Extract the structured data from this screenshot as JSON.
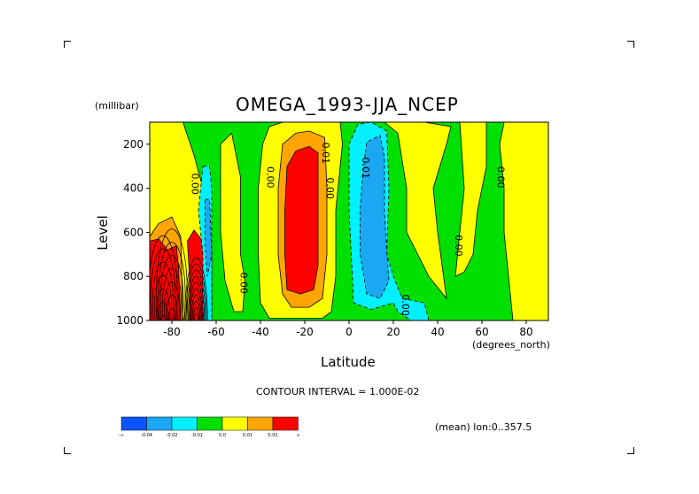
{
  "chart_data": {
    "type": "heatmap",
    "title": "OMEGA_1993-JJA_NCEP",
    "xlabel": "Latitude",
    "xunit": "(degrees_north)",
    "ylabel": "Level",
    "yunit": "(millibar)",
    "xlim": [
      -90,
      90
    ],
    "ylim": [
      1000,
      100
    ],
    "x_ticks": [
      "-80",
      "-60",
      "-40",
      "-20",
      "0",
      "20",
      "40",
      "60",
      "80"
    ],
    "x_tick_values": [
      -80,
      -60,
      -40,
      -20,
      0,
      20,
      40,
      60,
      80
    ],
    "y_ticks": [
      "200",
      "400",
      "600",
      "800",
      "1000"
    ],
    "y_tick_values": [
      200,
      400,
      600,
      800,
      1000
    ],
    "contour_interval_text": "CONTOUR INTERVAL = 1.000E-02",
    "annotation": "(mean) lon:0..357.5",
    "contour_labels": [
      {
        "text": "0.00",
        "lat": -71,
        "lev": 380
      },
      {
        "text": "0.00",
        "lat": -49,
        "lev": 830
      },
      {
        "text": "0.00",
        "lat": -37,
        "lev": 350
      },
      {
        "text": "0.01",
        "lat": -12,
        "lev": 240
      },
      {
        "text": "0.00",
        "lat": -10,
        "lev": 400
      },
      {
        "text": "-0.01",
        "lat": 6,
        "lev": 300
      },
      {
        "text": "0.00",
        "lat": 24,
        "lev": 930
      },
      {
        "text": "0.00",
        "lat": 48,
        "lev": 660
      },
      {
        "text": "0.00",
        "lat": 67,
        "lev": 350
      }
    ],
    "regions": [
      {
        "level": "0.0",
        "lon_lat": "green base",
        "pts": [
          [
            -90,
            100
          ],
          [
            90,
            100
          ],
          [
            90,
            1000
          ],
          [
            -90,
            1000
          ]
        ]
      },
      {
        "level": "0.0",
        "pts": [
          [
            -90,
            100
          ],
          [
            -75,
            100
          ],
          [
            -70,
            250
          ],
          [
            -66,
            400
          ],
          [
            -62,
            700
          ],
          [
            -62,
            1000
          ],
          [
            -90,
            1000
          ]
        ]
      },
      {
        "level": "0.0",
        "pts": [
          [
            -58,
            200
          ],
          [
            -53,
            150
          ],
          [
            -49,
            350
          ],
          [
            -49,
            700
          ],
          [
            -47,
            820
          ],
          [
            -48,
            960
          ],
          [
            -52,
            960
          ],
          [
            -56,
            820
          ],
          [
            -58,
            600
          ],
          [
            -58,
            400
          ]
        ]
      },
      {
        "level": "0.0",
        "pts": [
          [
            -39,
            200
          ],
          [
            -36,
            120
          ],
          [
            -30,
            100
          ],
          [
            -4,
            100
          ],
          [
            -3,
            200
          ],
          [
            -6,
            500
          ],
          [
            -6,
            800
          ],
          [
            -8,
            960
          ],
          [
            -12,
            990
          ],
          [
            -36,
            990
          ],
          [
            -40,
            920
          ],
          [
            -41,
            700
          ],
          [
            -41,
            400
          ]
        ]
      },
      {
        "level": "0.0",
        "pts": [
          [
            16,
            100
          ],
          [
            22,
            150
          ],
          [
            26,
            400
          ],
          [
            26,
            600
          ],
          [
            36,
            800
          ],
          [
            44,
            900
          ],
          [
            40,
            600
          ],
          [
            38,
            400
          ],
          [
            44,
            200
          ],
          [
            46,
            120
          ],
          [
            34,
            100
          ]
        ]
      },
      {
        "level": "0.0",
        "pts": [
          [
            50,
            100
          ],
          [
            62,
            100
          ],
          [
            62,
            300
          ],
          [
            58,
            500
          ],
          [
            56,
            700
          ],
          [
            52,
            780
          ],
          [
            48,
            800
          ],
          [
            50,
            600
          ],
          [
            52,
            400
          ]
        ]
      },
      {
        "level": "0.0",
        "pts": [
          [
            70,
            100
          ],
          [
            90,
            100
          ],
          [
            90,
            1000
          ],
          [
            74,
            1000
          ],
          [
            72,
            800
          ],
          [
            70,
            600
          ],
          [
            70,
            400
          ],
          [
            68,
            200
          ]
        ]
      },
      {
        "level": "0.01",
        "pts": [
          [
            -90,
            620
          ],
          [
            -86,
            560
          ],
          [
            -80,
            530
          ],
          [
            -76,
            620
          ],
          [
            -75,
            1000
          ],
          [
            -90,
            1000
          ]
        ]
      },
      {
        "level": "0.01",
        "pts": [
          [
            -30,
            200
          ],
          [
            -24,
            150
          ],
          [
            -18,
            140
          ],
          [
            -11,
            170
          ],
          [
            -10,
            400
          ],
          [
            -10,
            700
          ],
          [
            -12,
            900
          ],
          [
            -18,
            940
          ],
          [
            -26,
            940
          ],
          [
            -30,
            880
          ],
          [
            -32,
            700
          ],
          [
            -32,
            400
          ]
        ]
      },
      {
        "level": "0.02",
        "pts": [
          [
            -28,
            300
          ],
          [
            -24,
            230
          ],
          [
            -18,
            210
          ],
          [
            -14,
            240
          ],
          [
            -14,
            500
          ],
          [
            -14,
            750
          ],
          [
            -16,
            860
          ],
          [
            -22,
            880
          ],
          [
            -28,
            860
          ],
          [
            -29,
            700
          ],
          [
            -29,
            500
          ]
        ]
      },
      {
        "level": "0.02",
        "pts": [
          [
            -90,
            640
          ],
          [
            -86,
            630
          ],
          [
            -82,
            680
          ],
          [
            -78,
            660
          ],
          [
            -77,
            760
          ],
          [
            -76,
            1000
          ],
          [
            -90,
            1000
          ]
        ]
      },
      {
        "level": "0.02",
        "pts": [
          [
            -73,
            640
          ],
          [
            -70,
            590
          ],
          [
            -66,
            640
          ],
          [
            -64,
            700
          ],
          [
            -64,
            1000
          ],
          [
            -72,
            1000
          ],
          [
            -72,
            800
          ]
        ]
      },
      {
        "level": "-0.01",
        "pts": [
          [
            -66,
            300
          ],
          [
            -63,
            300
          ],
          [
            -62,
            400
          ],
          [
            -62,
            1000
          ],
          [
            -66,
            1000
          ],
          [
            -66,
            700
          ],
          [
            -68,
            500
          ]
        ]
      },
      {
        "level": "-0.01",
        "pts": [
          [
            0,
            200
          ],
          [
            4,
            110
          ],
          [
            10,
            100
          ],
          [
            17,
            140
          ],
          [
            18,
            400
          ],
          [
            17,
            700
          ],
          [
            20,
            800
          ],
          [
            24,
            900
          ],
          [
            34,
            920
          ],
          [
            36,
            1000
          ],
          [
            28,
            1000
          ],
          [
            22,
            960
          ],
          [
            20,
            920
          ],
          [
            10,
            950
          ],
          [
            2,
            920
          ],
          [
            1,
            700
          ],
          [
            0,
            500
          ]
        ]
      },
      {
        "level": "-0.02",
        "pts": [
          [
            6,
            350
          ],
          [
            8,
            190
          ],
          [
            14,
            160
          ],
          [
            16,
            260
          ],
          [
            16,
            500
          ],
          [
            17,
            680
          ],
          [
            18,
            820
          ],
          [
            14,
            900
          ],
          [
            8,
            880
          ],
          [
            5,
            700
          ],
          [
            5,
            500
          ]
        ]
      },
      {
        "level": "-0.02",
        "pts": [
          [
            -65,
            450
          ],
          [
            -63,
            450
          ],
          [
            -62,
            700
          ],
          [
            -64,
            800
          ],
          [
            -65,
            650
          ]
        ]
      }
    ]
  },
  "colorbar": {
    "colors": [
      "#0a55ff",
      "#1ca7f2",
      "#00f0ff",
      "#00e000",
      "#ffff00",
      "#ffa500",
      "#ff0000"
    ],
    "labels": [
      "-∞",
      "-0.04",
      "-0.02",
      "-0.01",
      "0.0",
      "0.01",
      "0.02",
      "∞"
    ]
  },
  "colors": {
    "-0.02": "#1ca7f2",
    "-0.01": "#00f0ff",
    "0.0": "#00e000",
    "0.01": "#ffff00",
    "0.02": "#ffa500",
    "0.03": "#ff0000"
  }
}
